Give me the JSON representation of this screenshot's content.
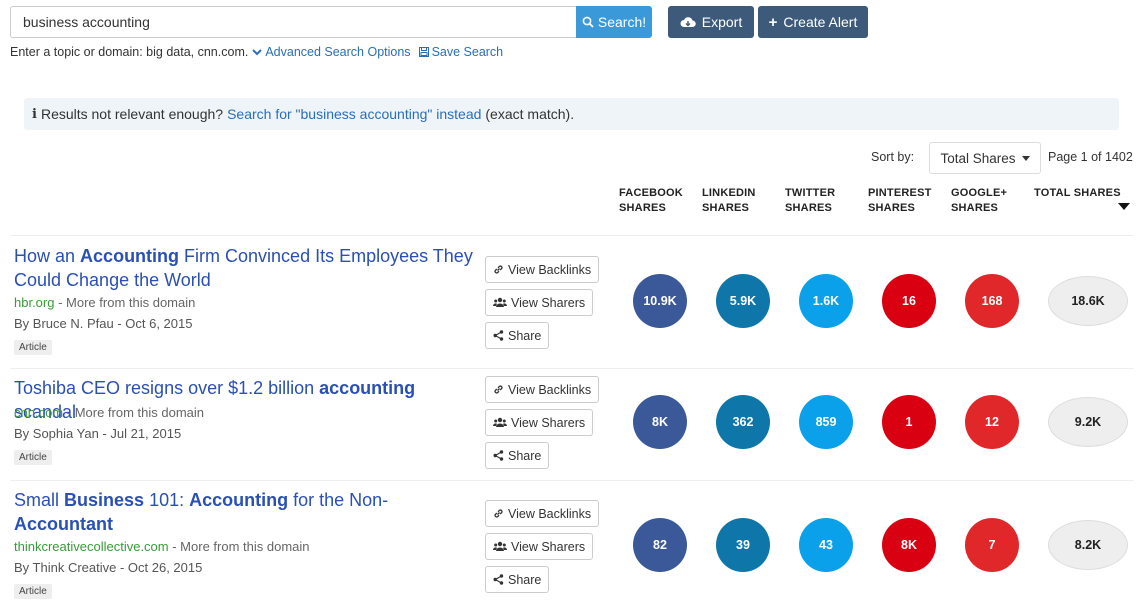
{
  "search": {
    "value": "business accounting",
    "button_label": "Search!",
    "export_label": "Export",
    "alert_label": "Create Alert"
  },
  "helper": {
    "text": "Enter a topic or domain: big data, cnn.com.",
    "advanced_label": "Advanced Search Options",
    "save_label": "Save Search"
  },
  "notice": {
    "prefix": "Results not relevant enough?",
    "link": "Search for \"business accounting\" instead",
    "suffix": "(exact match)."
  },
  "sort": {
    "label": "Sort by:",
    "selected": "Total Shares",
    "page_info": "Page 1 of 1402"
  },
  "columns": {
    "facebook": [
      "FACEBOOK",
      "SHARES"
    ],
    "linkedin": [
      "LINKEDIN",
      "SHARES"
    ],
    "twitter": [
      "TWITTER",
      "SHARES"
    ],
    "pinterest": [
      "PINTEREST",
      "SHARES"
    ],
    "googleplus": [
      "GOOGLE+",
      "SHARES"
    ],
    "total": "TOTAL SHARES"
  },
  "actions": {
    "backlinks": "View Backlinks",
    "sharers": "View Sharers",
    "share": "Share"
  },
  "results": [
    {
      "title_parts": [
        {
          "t": "How an ",
          "b": false
        },
        {
          "t": "Accounting",
          "b": true
        },
        {
          "t": " Firm Convinced Its Employees They Could Change the World",
          "b": false
        }
      ],
      "domain": "hbr.org",
      "more": " - More from this domain",
      "byline": "By Bruce N. Pfau - Oct 6, 2015",
      "tag": "Article",
      "facebook": "10.9K",
      "linkedin": "5.9K",
      "twitter": "1.6K",
      "pinterest": "16",
      "googleplus": "168",
      "total": "18.6K"
    },
    {
      "title_parts": [
        {
          "t": "Toshiba CEO resigns over $1.2 billion ",
          "b": false
        },
        {
          "t": "accounting",
          "b": true
        },
        {
          "t": " scandal",
          "b": false
        }
      ],
      "domain": "cnn.com",
      "more": " - More from this domain",
      "byline": "By Sophia Yan - Jul 21, 2015",
      "tag": "Article",
      "facebook": "8K",
      "linkedin": "362",
      "twitter": "859",
      "pinterest": "1",
      "googleplus": "12",
      "total": "9.2K"
    },
    {
      "title_parts": [
        {
          "t": "Small ",
          "b": false
        },
        {
          "t": "Business",
          "b": true
        },
        {
          "t": " 101: ",
          "b": false
        },
        {
          "t": "Accounting",
          "b": true
        },
        {
          "t": " for the Non-",
          "b": false
        },
        {
          "t": "Accountant",
          "b": true
        }
      ],
      "domain": "thinkcreativecollective.com",
      "more": " - More from this domain",
      "byline": "By Think Creative - Oct 26, 2015",
      "tag": "Article",
      "facebook": "82",
      "linkedin": "39",
      "twitter": "43",
      "pinterest": "8K",
      "googleplus": "7",
      "total": "8.2K"
    }
  ]
}
